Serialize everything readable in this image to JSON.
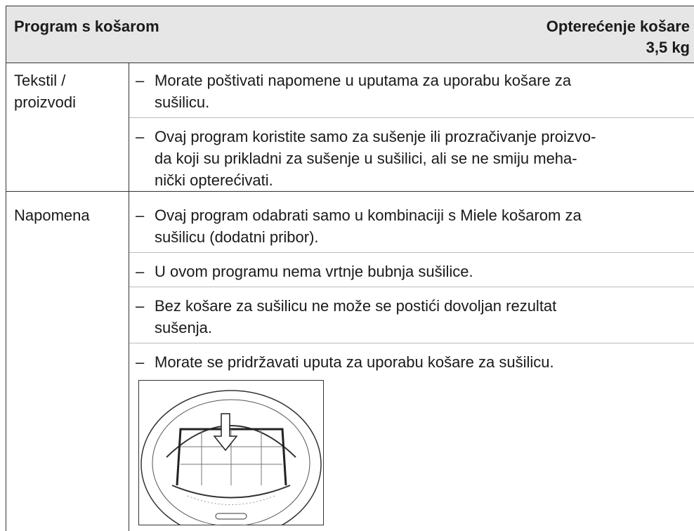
{
  "header": {
    "title": "Program s košarom",
    "load_label": "Opterećenje košare",
    "load_value": "3,5 kg"
  },
  "bullet": "–",
  "rows": [
    {
      "label": [
        "Tekstil /",
        "proizvodi"
      ],
      "items": [
        [
          "Morate poštivati napomene u uputama za uporabu košare za",
          "sušilicu."
        ],
        [
          "Ovaj program koristite samo za sušenje ili prozračivanje proizvo-",
          "da koji su prikladni za sušenje u sušilici, ali se ne smiju meha-",
          "nički opterećivati."
        ]
      ]
    },
    {
      "label": [
        "Napomena"
      ],
      "items": [
        [
          "Ovaj program odabrati samo u kombinaciji s Miele košarom za",
          "sušilicu (dodatni pribor)."
        ],
        [
          "U ovom programu nema vrtnje bubnja sušilice."
        ],
        [
          "Bez košare za sušilicu ne može se postići dovoljan rezultat",
          "sušenja."
        ],
        [
          "Morate se pridržavati uputa za uporabu košare za sušilicu."
        ]
      ]
    }
  ]
}
